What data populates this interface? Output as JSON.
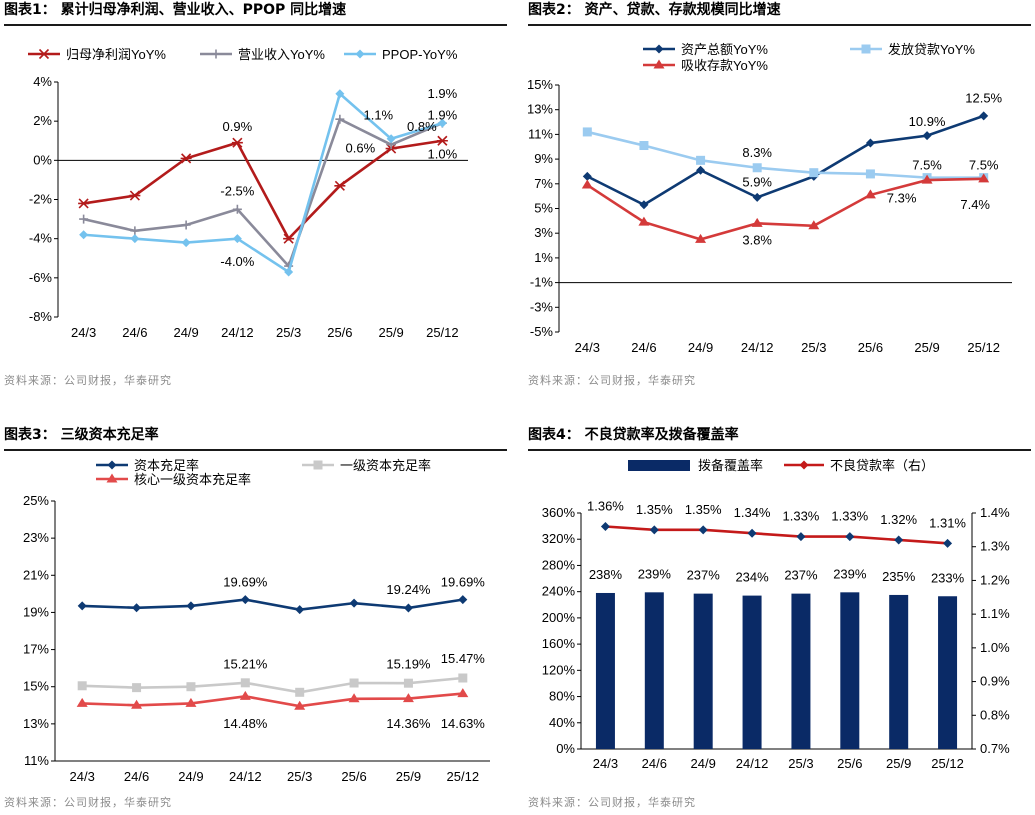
{
  "chart_data": [
    {
      "id": "c1",
      "type": "line",
      "title": "图表1：  累计归母净利润、营业收入、PPOP 同比增速",
      "source": "资料来源：公司财报，华泰研究",
      "categories": [
        "24/3",
        "24/6",
        "24/9",
        "24/12",
        "25/3",
        "25/6",
        "25/9",
        "25/12"
      ],
      "ylim": [
        -8,
        4
      ],
      "yticks": [
        4,
        2,
        0,
        -2,
        -4,
        -6,
        -8
      ],
      "ytick_labels": [
        "4%",
        "2%",
        "0%",
        "-2%",
        "-4%",
        "-6%",
        "-8%"
      ],
      "series": [
        {
          "name": "归母净利润YoY%",
          "color": "#b31b1b",
          "marker": "star",
          "values": [
            -2.2,
            -1.8,
            0.1,
            0.9,
            -4.0,
            -1.3,
            0.6,
            1.0
          ]
        },
        {
          "name": "营业收入YoY%",
          "color": "#8a8a9a",
          "marker": "plus",
          "values": [
            -3.0,
            -3.6,
            -3.3,
            -2.5,
            -5.4,
            2.1,
            0.8,
            1.9
          ]
        },
        {
          "name": "PPOP-YoY%",
          "color": "#74c2ee",
          "marker": "diamond",
          "values": [
            -3.8,
            -4.0,
            -4.2,
            -4.0,
            -5.7,
            3.4,
            1.1,
            1.9
          ]
        }
      ],
      "annotations": [
        {
          "text": "0.9%",
          "x": 3,
          "y": 1.7
        },
        {
          "text": "-2.5%",
          "x": 3,
          "y": -1.6
        },
        {
          "text": "-4.0%",
          "x": 3,
          "y": -5.2
        },
        {
          "text": "1.1%",
          "x": 5.75,
          "y": 2.3
        },
        {
          "text": "0.6%",
          "x": 5.4,
          "y": 0.6
        },
        {
          "text": "0.8%",
          "x": 6.6,
          "y": 1.7
        },
        {
          "text": "1.9%",
          "x": 7,
          "y": 3.4
        },
        {
          "text": "1.9%",
          "x": 7,
          "y": 2.3
        },
        {
          "text": "1.0%",
          "x": 7,
          "y": 0.3
        }
      ]
    },
    {
      "id": "c2",
      "type": "line",
      "title": "图表2：  资产、贷款、存款规模同比增速",
      "source": "资料来源：公司财报，华泰研究",
      "categories": [
        "24/3",
        "24/6",
        "24/9",
        "24/12",
        "25/3",
        "25/6",
        "25/9",
        "25/12"
      ],
      "ylim": [
        -5,
        15
      ],
      "yticks": [
        15,
        13,
        11,
        9,
        7,
        5,
        3,
        1,
        -1,
        -3,
        -5
      ],
      "ytick_labels": [
        "15%",
        "13%",
        "11%",
        "9%",
        "7%",
        "5%",
        "3%",
        "1%",
        "-1%",
        "-3%",
        "-5%"
      ],
      "series": [
        {
          "name": "资产总额YoY%",
          "color": "#0e3a73",
          "marker": "diamond",
          "values": [
            7.6,
            5.3,
            8.1,
            5.9,
            7.6,
            10.3,
            10.9,
            12.5
          ]
        },
        {
          "name": "发放贷款YoY%",
          "color": "#9bcbf0",
          "marker": "square",
          "values": [
            11.2,
            10.1,
            8.9,
            8.3,
            7.9,
            7.8,
            7.5,
            7.5
          ]
        },
        {
          "name": "吸收存款YoY%",
          "color": "#d43a3a",
          "marker": "triangle",
          "values": [
            6.9,
            3.9,
            2.5,
            3.8,
            3.6,
            6.1,
            7.3,
            7.4
          ]
        }
      ],
      "annotations": [
        {
          "text": "8.3%",
          "x": 3,
          "y": 9.5
        },
        {
          "text": "5.9%",
          "x": 3,
          "y": 7.1
        },
        {
          "text": "3.8%",
          "x": 3,
          "y": 2.4
        },
        {
          "text": "12.5%",
          "x": 7,
          "y": 13.9
        },
        {
          "text": "10.9%",
          "x": 6,
          "y": 12.0
        },
        {
          "text": "7.5%",
          "x": 6,
          "y": 8.5
        },
        {
          "text": "7.5%",
          "x": 7,
          "y": 8.5
        },
        {
          "text": "7.3%",
          "x": 5.55,
          "y": 5.8
        },
        {
          "text": "7.4%",
          "x": 6.85,
          "y": 5.3
        }
      ]
    },
    {
      "id": "c3",
      "type": "line",
      "title": "图表3：  三级资本充足率",
      "source": "资料来源：公司财报，华泰研究",
      "categories": [
        "24/3",
        "24/6",
        "24/9",
        "24/12",
        "25/3",
        "25/6",
        "25/9",
        "25/12"
      ],
      "ylim": [
        11,
        25
      ],
      "yticks": [
        25,
        23,
        21,
        19,
        17,
        15,
        13,
        11
      ],
      "ytick_labels": [
        "25%",
        "23%",
        "21%",
        "19%",
        "17%",
        "15%",
        "13%",
        "11%"
      ],
      "series": [
        {
          "name": "资本充足率",
          "color": "#0e3a73",
          "marker": "diamond",
          "values": [
            19.35,
            19.25,
            19.35,
            19.69,
            19.15,
            19.5,
            19.24,
            19.69
          ]
        },
        {
          "name": "一级资本充足率",
          "color": "#c9c9c9",
          "marker": "square",
          "values": [
            15.05,
            14.95,
            15.0,
            15.21,
            14.7,
            15.2,
            15.19,
            15.47
          ]
        },
        {
          "name": "核心一级资本充足率",
          "color": "#e24a4a",
          "marker": "triangle",
          "values": [
            14.1,
            14.0,
            14.1,
            14.48,
            13.95,
            14.35,
            14.36,
            14.63
          ]
        }
      ],
      "annotations": [
        {
          "text": "19.69%",
          "x": 3,
          "y": 20.6
        },
        {
          "text": "15.21%",
          "x": 3,
          "y": 16.2
        },
        {
          "text": "14.48%",
          "x": 3,
          "y": 13.0
        },
        {
          "text": "19.24%",
          "x": 6,
          "y": 20.2
        },
        {
          "text": "19.69%",
          "x": 7,
          "y": 20.6
        },
        {
          "text": "15.19%",
          "x": 6,
          "y": 16.2
        },
        {
          "text": "15.47%",
          "x": 7,
          "y": 16.5
        },
        {
          "text": "14.36%",
          "x": 6,
          "y": 13.0
        },
        {
          "text": "14.63%",
          "x": 7,
          "y": 13.0
        }
      ]
    },
    {
      "id": "c4",
      "type": "bar+line",
      "title": "图表4：  不良贷款率及拨备覆盖率",
      "source": "资料来源：公司财报，华泰研究",
      "categories": [
        "24/3",
        "24/6",
        "24/9",
        "24/12",
        "25/3",
        "25/6",
        "25/9",
        "25/12"
      ],
      "ylim": [
        0,
        360
      ],
      "yticks": [
        360,
        320,
        280,
        240,
        200,
        160,
        120,
        80,
        40,
        0
      ],
      "ytick_labels": [
        "360%",
        "320%",
        "280%",
        "240%",
        "200%",
        "160%",
        "120%",
        "80%",
        "40%",
        "0%"
      ],
      "y2lim": [
        0.7,
        1.4
      ],
      "y2ticks": [
        1.4,
        1.3,
        1.2,
        1.1,
        1.0,
        0.9,
        0.8,
        0.7
      ],
      "y2tick_labels": [
        "1.4%",
        "1.3%",
        "1.2%",
        "1.1%",
        "1.0%",
        "0.9%",
        "0.8%",
        "0.7%"
      ],
      "bars": {
        "name": "拨备覆盖率",
        "color": "#0a2a66",
        "values": [
          238,
          239,
          237,
          234,
          237,
          239,
          235,
          233
        ],
        "labels": [
          "238%",
          "239%",
          "237%",
          "234%",
          "237%",
          "239%",
          "235%",
          "233%"
        ]
      },
      "line": {
        "name": "不良贷款率（右）",
        "color": "#c41a1a",
        "marker": "diamond",
        "values": [
          1.36,
          1.35,
          1.35,
          1.34,
          1.33,
          1.33,
          1.32,
          1.31
        ],
        "labels": [
          "1.36%",
          "1.35%",
          "1.35%",
          "1.34%",
          "1.33%",
          "1.33%",
          "1.32%",
          "1.31%"
        ]
      }
    }
  ]
}
